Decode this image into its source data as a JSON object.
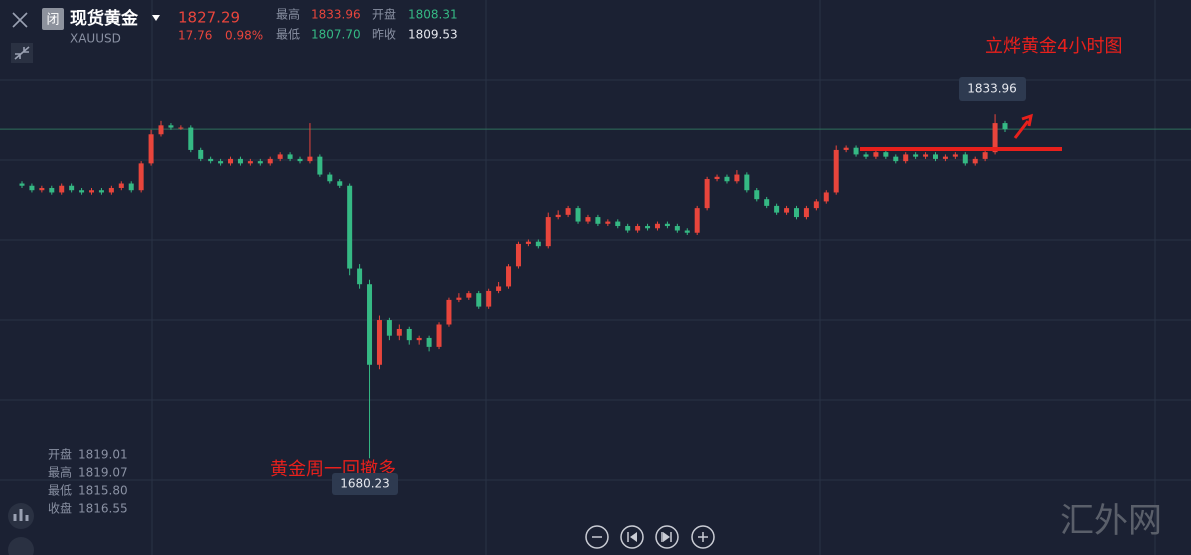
{
  "header": {
    "status_icon": "闭",
    "symbol_name": "现货黄金",
    "symbol_code": "XAUUSD",
    "change": "17.76",
    "change_percent": "0.98%",
    "stats": [
      {
        "label": "最高",
        "value": "1833.96"
      },
      {
        "label": "开盘",
        "value": "1808.31"
      },
      {
        "label": "最低",
        "value": "1807.70"
      },
      {
        "label": "昨收",
        "value": "1809.53"
      }
    ]
  },
  "info_panel": [
    {
      "label": "开盘",
      "value": "1819.01"
    },
    {
      "label": "最高",
      "value": "1819.07"
    },
    {
      "label": "最低",
      "value": "1815.80"
    },
    {
      "label": "收盘",
      "value": "1816.55"
    }
  ],
  "watermark": "汇外网",
  "chart_data": {
    "type": "candlestick",
    "annotations": [
      "立烨黄金4小时图",
      "黄金周一回撤多"
    ],
    "up_color": "#e8453c",
    "down_color": "#35b984",
    "ylim": [
      1637,
      1885
    ],
    "open": [
      1803,
      1802,
      1800,
      1801,
      1799,
      1802,
      1800,
      1799,
      1800,
      1799,
      1801,
      1803,
      1800,
      1812,
      1825,
      1829,
      1828,
      1828,
      1818,
      1814,
      1813,
      1812,
      1814,
      1812,
      1813,
      1812,
      1814,
      1816,
      1814,
      1813,
      1815,
      1807,
      1804,
      1802,
      1765,
      1758,
      1722,
      1742,
      1735,
      1738,
      1733,
      1734,
      1730,
      1740,
      1751,
      1752,
      1754,
      1748,
      1755,
      1757,
      1766,
      1776,
      1777,
      1775,
      1788,
      1789,
      1792,
      1786,
      1788,
      1785,
      1786,
      1784,
      1782,
      1784,
      1783,
      1785,
      1784,
      1782,
      1781,
      1792,
      1805,
      1806,
      1804,
      1807,
      1800,
      1796,
      1793,
      1790,
      1792,
      1788,
      1792,
      1795,
      1799,
      1818,
      1819,
      1816,
      1815,
      1817,
      1815,
      1813,
      1816,
      1815,
      1816,
      1814,
      1815,
      1816,
      1812,
      1814,
      1817,
      1830
    ],
    "high": [
      1804,
      1803,
      1802,
      1802,
      1803,
      1803,
      1801,
      1801,
      1801,
      1802,
      1804,
      1804,
      1813,
      1827,
      1831,
      1830,
      1829,
      1829,
      1819,
      1815,
      1814,
      1815,
      1815,
      1814,
      1814,
      1815,
      1817,
      1817,
      1815,
      1830,
      1816,
      1808,
      1805,
      1803,
      1767,
      1760,
      1744,
      1743,
      1740,
      1739,
      1735,
      1735,
      1741,
      1752,
      1754,
      1755,
      1755,
      1756,
      1759,
      1767,
      1777,
      1778,
      1778,
      1790,
      1791,
      1793,
      1793,
      1789,
      1789,
      1787,
      1787,
      1785,
      1785,
      1785,
      1786,
      1786,
      1785,
      1783,
      1793,
      1806,
      1807,
      1807,
      1809,
      1808,
      1801,
      1797,
      1794,
      1793,
      1793,
      1793,
      1796,
      1800,
      1820,
      1820,
      1820,
      1817,
      1818,
      1818,
      1816,
      1817,
      1817,
      1817,
      1817,
      1816,
      1817,
      1817,
      1815,
      1818,
      1833.96,
      1831
    ],
    "low": [
      1801,
      1799,
      1799,
      1798,
      1798,
      1799,
      1798,
      1798,
      1798,
      1798,
      1800,
      1799,
      1799,
      1811,
      1824,
      1827,
      1827,
      1817,
      1813,
      1812,
      1811,
      1811,
      1811,
      1811,
      1811,
      1811,
      1813,
      1813,
      1812,
      1812,
      1806,
      1803,
      1801,
      1762,
      1756,
      1680.23,
      1720,
      1733,
      1733,
      1731,
      1731,
      1728,
      1729,
      1739,
      1750,
      1751,
      1747,
      1747,
      1754,
      1756,
      1765,
      1775,
      1774,
      1774,
      1787,
      1788,
      1785,
      1785,
      1784,
      1784,
      1783,
      1781,
      1781,
      1782,
      1782,
      1783,
      1781,
      1780,
      1780,
      1791,
      1804,
      1803,
      1803,
      1799,
      1795,
      1792,
      1789,
      1789,
      1787,
      1787,
      1791,
      1794,
      1798,
      1817,
      1815,
      1814,
      1814,
      1814,
      1812,
      1812,
      1814,
      1814,
      1813,
      1813,
      1814,
      1811,
      1811,
      1813,
      1816,
      1826
    ],
    "close": [
      1802,
      1800,
      1801,
      1799,
      1802,
      1800,
      1799,
      1800,
      1799,
      1801,
      1803,
      1800,
      1812,
      1825,
      1829,
      1828,
      1828,
      1818,
      1814,
      1813,
      1812,
      1814,
      1812,
      1813,
      1812,
      1814,
      1816,
      1814,
      1813,
      1815,
      1807,
      1804,
      1802,
      1765,
      1758,
      1722,
      1742,
      1735,
      1738,
      1733,
      1734,
      1730,
      1740,
      1751,
      1752,
      1754,
      1748,
      1755,
      1757,
      1766,
      1776,
      1777,
      1775,
      1788,
      1789,
      1792,
      1786,
      1788,
      1785,
      1786,
      1784,
      1782,
      1784,
      1783,
      1785,
      1784,
      1782,
      1781,
      1792,
      1805,
      1806,
      1804,
      1807,
      1800,
      1796,
      1793,
      1790,
      1792,
      1788,
      1792,
      1795,
      1799,
      1818,
      1819,
      1816,
      1815,
      1817,
      1815,
      1813,
      1816,
      1815,
      1816,
      1814,
      1815,
      1816,
      1812,
      1814,
      1817,
      1830,
      1827.29
    ]
  }
}
